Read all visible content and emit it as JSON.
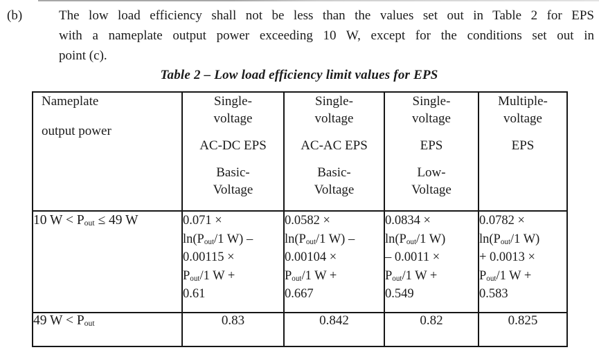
{
  "intro": {
    "label": "(b)",
    "lines": [
      "The low load efficiency shall not be less than the values set out in Table 2 for EPS",
      "with a nameplate output power exceeding 10 W, except for the conditions set out in",
      "point (c)."
    ]
  },
  "table": {
    "title": "Table 2 – Low load efficiency limit values for EPS",
    "header": [
      [
        [
          "Nameplate"
        ],
        [
          "output power"
        ]
      ],
      [
        [
          "Single-",
          "voltage"
        ],
        [
          "AC-DC EPS"
        ],
        [
          "Basic-",
          "Voltage"
        ]
      ],
      [
        [
          "Single-",
          "voltage"
        ],
        [
          "AC-AC EPS"
        ],
        [
          "Basic-",
          "Voltage"
        ]
      ],
      [
        [
          "Single-",
          "voltage"
        ],
        [
          "EPS"
        ],
        [
          "Low-",
          "Voltage"
        ]
      ],
      [
        [
          "Multiple-",
          "voltage"
        ],
        [
          "EPS"
        ]
      ]
    ],
    "rows": [
      {
        "range": "10 W < P~out~ ≤ 49 W",
        "cells": [
          [
            "0.071 ×",
            "ln(P~out~/1 W) –",
            "0.00115 ×",
            "P~out~/1 W +",
            "0.61"
          ],
          [
            "0.0582 ×",
            "ln(P~out~/1 W) –",
            "0.00104 ×",
            "P~out~/1 W +",
            "0.667"
          ],
          [
            "0.0834 ×",
            "ln(P~out~/1 W)",
            "– 0.0011 ×",
            "P~out~/1 W +",
            "0.549"
          ],
          [
            "0.0782 ×",
            "ln(P~out~/1 W)",
            "+ 0.0013 ×",
            "P~out~/1 W +",
            "0.583"
          ]
        ]
      },
      {
        "range": "49 W < P~out~",
        "cells": [
          "0.83",
          "0.842",
          "0.82",
          "0.825"
        ]
      }
    ]
  }
}
